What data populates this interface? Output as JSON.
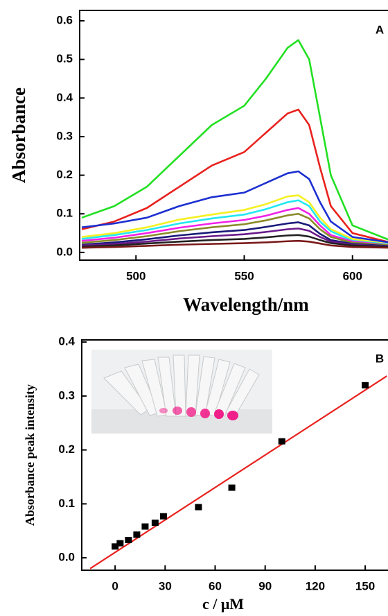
{
  "chart_data": [
    {
      "type": "line",
      "annotation": "A",
      "xlabel": "Wavelength/nm",
      "ylabel": "Absorbance",
      "x": [
        475,
        490,
        505,
        520,
        535,
        550,
        560,
        570,
        575,
        580,
        585,
        590,
        600,
        618
      ],
      "xlim": [
        474,
        618
      ],
      "ylim": [
        -0.02,
        0.627
      ],
      "xticks": [
        500,
        550,
        600
      ],
      "yticks": [
        {
          "value": 0,
          "label": "0.0"
        },
        0.1,
        0.2,
        0.3,
        0.4,
        0.5,
        0.6
      ],
      "series": [
        {
          "color": "#22e022",
          "values": [
            0.09,
            0.12,
            0.17,
            0.25,
            0.33,
            0.38,
            0.45,
            0.53,
            0.55,
            0.5,
            0.35,
            0.2,
            0.07,
            0.03
          ]
        },
        {
          "color": "#e8221e",
          "values": [
            0.06,
            0.08,
            0.115,
            0.17,
            0.225,
            0.26,
            0.31,
            0.36,
            0.37,
            0.33,
            0.22,
            0.12,
            0.05,
            0.025
          ]
        },
        {
          "color": "#1c2fd0",
          "values": [
            0.065,
            0.075,
            0.09,
            0.12,
            0.143,
            0.155,
            0.18,
            0.205,
            0.21,
            0.19,
            0.13,
            0.08,
            0.04,
            0.025
          ]
        },
        {
          "color": "#f5f022",
          "values": [
            0.04,
            0.05,
            0.065,
            0.085,
            0.098,
            0.11,
            0.125,
            0.145,
            0.148,
            0.13,
            0.09,
            0.06,
            0.035,
            0.02
          ]
        },
        {
          "color": "#22e8f0",
          "values": [
            0.035,
            0.045,
            0.058,
            0.075,
            0.088,
            0.098,
            0.112,
            0.13,
            0.135,
            0.12,
            0.08,
            0.055,
            0.03,
            0.02
          ]
        },
        {
          "color": "#f022e8",
          "values": [
            0.03,
            0.038,
            0.05,
            0.064,
            0.075,
            0.084,
            0.095,
            0.11,
            0.115,
            0.1,
            0.07,
            0.045,
            0.028,
            0.018
          ]
        },
        {
          "color": "#8a8a2a",
          "values": [
            0.025,
            0.032,
            0.042,
            0.055,
            0.065,
            0.073,
            0.083,
            0.096,
            0.1,
            0.088,
            0.06,
            0.04,
            0.025,
            0.018
          ]
        },
        {
          "color": "#1a1a7a",
          "values": [
            0.02,
            0.026,
            0.034,
            0.044,
            0.052,
            0.058,
            0.066,
            0.075,
            0.078,
            0.07,
            0.048,
            0.032,
            0.022,
            0.016
          ]
        },
        {
          "color": "#6a1a8a",
          "values": [
            0.018,
            0.022,
            0.028,
            0.036,
            0.042,
            0.047,
            0.053,
            0.06,
            0.062,
            0.056,
            0.04,
            0.028,
            0.02,
            0.015
          ]
        },
        {
          "color": "#222222",
          "values": [
            0.015,
            0.018,
            0.023,
            0.028,
            0.032,
            0.035,
            0.039,
            0.044,
            0.045,
            0.041,
            0.032,
            0.024,
            0.018,
            0.014
          ]
        },
        {
          "color": "#7a1a1a",
          "values": [
            0.012,
            0.014,
            0.017,
            0.02,
            0.022,
            0.024,
            0.026,
            0.029,
            0.03,
            0.028,
            0.023,
            0.018,
            0.014,
            0.012
          ]
        }
      ]
    },
    {
      "type": "scatter",
      "annotation": "B",
      "xlabel": "c / μM",
      "ylabel": "Absorbance peak intensity",
      "x": [
        0,
        3,
        8,
        13,
        18,
        24,
        29,
        50,
        70,
        100,
        150
      ],
      "values": [
        0.021,
        0.027,
        0.033,
        0.043,
        0.058,
        0.065,
        0.077,
        0.094,
        0.13,
        0.216,
        0.32
      ],
      "color": "#000000",
      "fit_line": {
        "x": [
          -15,
          163
        ],
        "y": [
          -0.02,
          0.337
        ],
        "color": "#e8221e"
      },
      "xlim": [
        -20,
        167
      ],
      "ylim": [
        -0.023,
        0.404
      ],
      "xticks": [
        0,
        30,
        60,
        90,
        120,
        150
      ],
      "yticks": [
        {
          "value": 0,
          "label": "0.0"
        },
        0.1,
        0.2,
        0.3,
        0.4
      ]
    }
  ]
}
